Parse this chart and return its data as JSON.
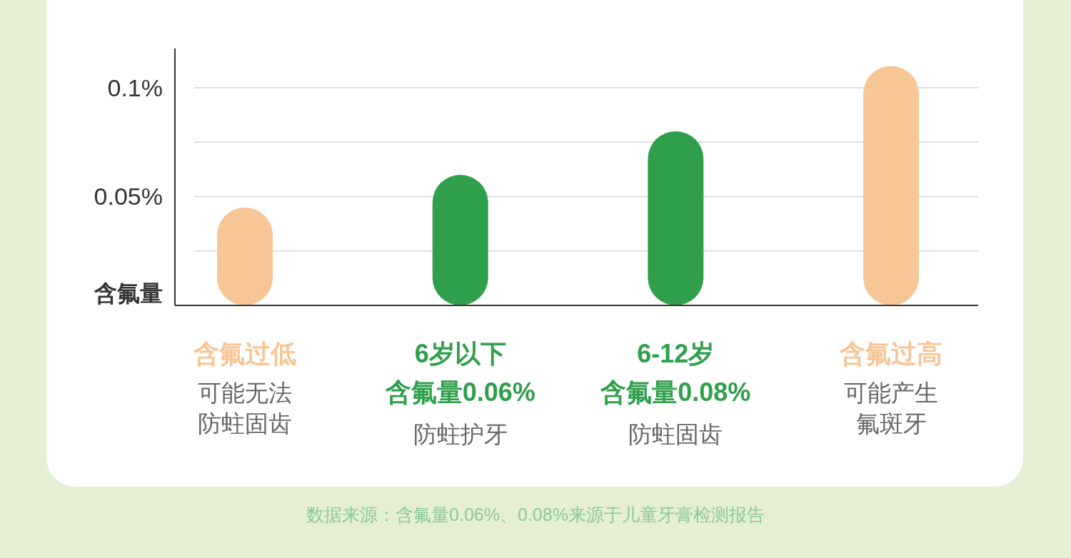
{
  "chart_data": {
    "type": "bar",
    "ylabel": "含氟量",
    "categories": [
      "含氟过低",
      "6岁以下",
      "6-12岁",
      "含氟过高"
    ],
    "values": [
      0.045,
      0.06,
      0.08,
      0.11
    ],
    "value_labels": [
      null,
      "含氟量0.06%",
      "含氟量0.08%",
      null
    ],
    "colors": [
      "#f7c697",
      "#2f9f4c",
      "#2f9f4c",
      "#f7c697"
    ],
    "ylim": [
      0,
      0.118
    ],
    "yticks": [
      {
        "value": 0.025,
        "label": null
      },
      {
        "value": 0.05,
        "label": "0.05%"
      },
      {
        "value": 0.075,
        "label": null
      },
      {
        "value": 0.1,
        "label": "0.1%"
      }
    ],
    "grid": "y",
    "annotations": [
      "可能无法防蛀固齿",
      "防蛀护牙",
      "防蛀固齿",
      "可能产生氟斑牙",
      "数据来源：含氟量0.06%、0.08%来源于儿童牙膏检测报告"
    ]
  }
}
